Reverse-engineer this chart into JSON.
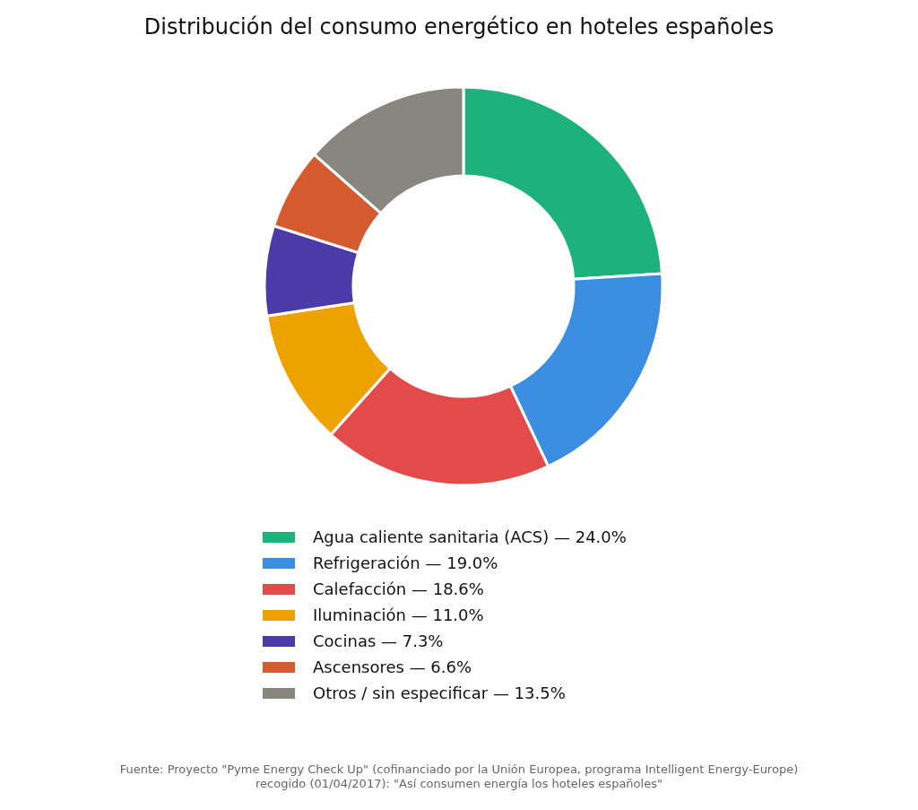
{
  "chart_data": {
    "type": "donut",
    "title": "Distribución del consumo energético en hoteles españoles",
    "categories": [
      "Agua caliente sanitaria (ACS)",
      "Refrigeración",
      "Calefacción",
      "Iluminación",
      "Cocinas",
      "Ascensores",
      "Otros / sin especificar"
    ],
    "values": [
      24.0,
      19.0,
      18.6,
      11.0,
      7.3,
      6.6,
      13.5
    ],
    "value_labels": [
      "— 24.0%",
      "— 19.0%",
      "— 18.6%",
      "— 11.0%",
      "— 7.3%",
      "— 6.6%",
      "— 13.5%"
    ],
    "colors": [
      "#1db27c",
      "#3a8de0",
      "#e34b4b",
      "#eda200",
      "#4b3aa8",
      "#d65a30",
      "#878780"
    ],
    "legend": "bottom",
    "annotations": [
      "Fuente: Proyecto \"Pyme Energy Check Up\" (cofinanciado por la Unión Europea, programa Intelligent Energy-Europe)",
      "recogido (01/04/2017): \"Así consumen energía los hoteles españoles\""
    ]
  }
}
